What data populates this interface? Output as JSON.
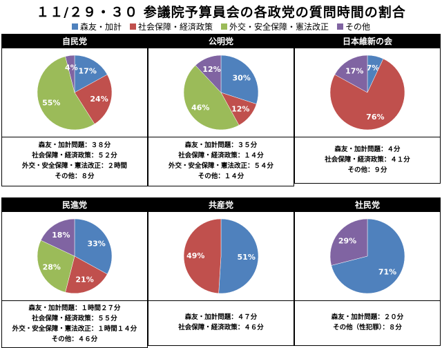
{
  "title": "１１/２９・３０ 参議院予算員会の各政党の質問時間の割合",
  "colors": {
    "morikake": "#4f81bd",
    "social": "#c0504d",
    "diplomacy": "#9bbb59",
    "other": "#8064a2"
  },
  "legend": [
    {
      "label": "森友・加計",
      "color": "#4f81bd"
    },
    {
      "label": "社会保障・経済政策",
      "color": "#c0504d"
    },
    {
      "label": "外交・安全保障・憲法改正",
      "color": "#9bbb59"
    },
    {
      "label": "その他",
      "color": "#8064a2"
    }
  ],
  "chart_data": [
    {
      "type": "pie",
      "title": "自民党",
      "categories": [
        "森友・加計",
        "社会保障・経済政策",
        "外交・安全保障・憲法改正",
        "その他"
      ],
      "values": [
        17,
        24,
        55,
        4
      ],
      "labels": [
        "17%",
        "24%",
        "55%",
        "4%"
      ],
      "notes": [
        "森友・加計問題：３８分",
        "社会保障・経済政策：５２分",
        "外交・安全保障・憲法改正：２時間",
        "その他：８分"
      ]
    },
    {
      "type": "pie",
      "title": "公明党",
      "categories": [
        "森友・加計",
        "社会保障・経済政策",
        "外交・安全保障・憲法改正",
        "その他"
      ],
      "values": [
        30,
        12,
        46,
        12
      ],
      "labels": [
        "30%",
        "12%",
        "46%",
        "12%"
      ],
      "notes": [
        "森友・加計問題：３５分",
        "社会保障・経済政策：１４分",
        "外交・安全保障・憲法改正：５４分",
        "その他：１４分"
      ]
    },
    {
      "type": "pie",
      "title": "日本維新の会",
      "categories": [
        "森友・加計",
        "社会保障・経済政策",
        "その他"
      ],
      "values": [
        7,
        76,
        17
      ],
      "labels": [
        "7%",
        "76%",
        "17%"
      ],
      "notes": [
        "森友・加計問題：４分",
        "社会保障・経済政策：４１分",
        "その他：９分"
      ]
    },
    {
      "type": "pie",
      "title": "民進党",
      "categories": [
        "森友・加計",
        "社会保障・経済政策",
        "外交・安全保障・憲法改正",
        "その他"
      ],
      "values": [
        33,
        21,
        28,
        18
      ],
      "labels": [
        "33%",
        "21%",
        "28%",
        "18%"
      ],
      "notes": [
        "森友・加計問題：１時間２７分",
        "社会保障・経済政策：５５分",
        "外交・安全保障・憲法改正：１時間１４分",
        "その他：４６分"
      ]
    },
    {
      "type": "pie",
      "title": "共産党",
      "categories": [
        "森友・加計",
        "社会保障・経済政策"
      ],
      "values": [
        51,
        49
      ],
      "labels": [
        "51%",
        "49%"
      ],
      "notes": [
        "森友・加計問題：４７分",
        "社会保障・経済政策：４６分"
      ]
    },
    {
      "type": "pie",
      "title": "社民党",
      "categories": [
        "森友・加計",
        "その他"
      ],
      "values": [
        71,
        29
      ],
      "labels": [
        "71%",
        "29%"
      ],
      "notes": [
        "森友・加計問題：２０分",
        "その他（性犯罪）：８分"
      ]
    }
  ]
}
